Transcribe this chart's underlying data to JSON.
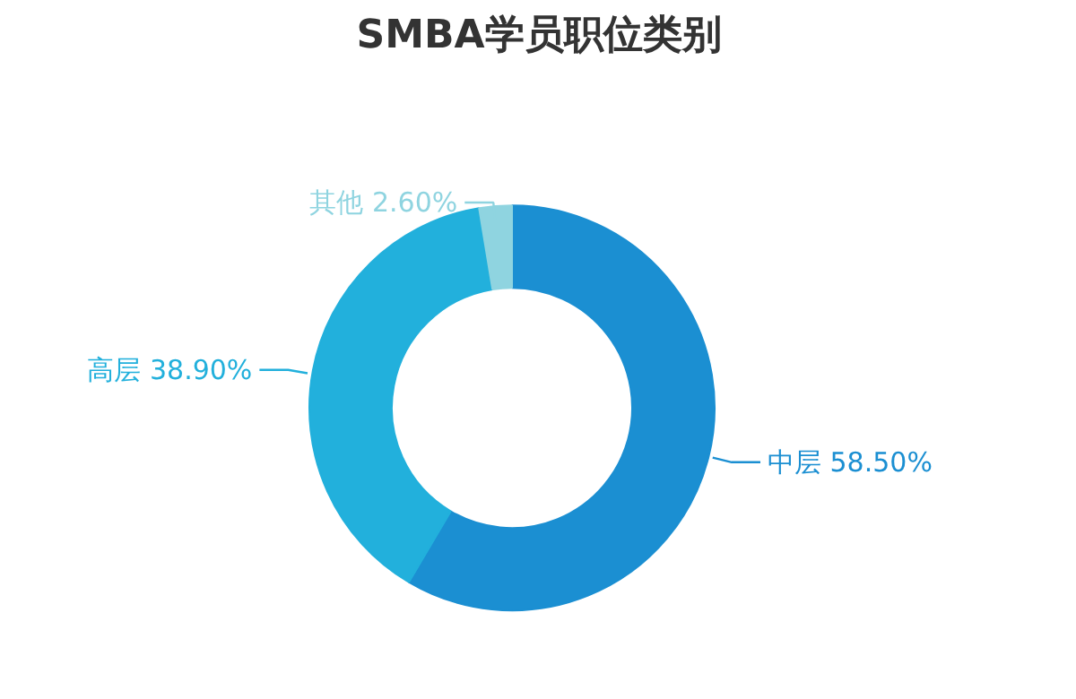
{
  "chart_data": {
    "type": "donut",
    "title": "SMBA学员职位类别",
    "categories": [
      "中层",
      "高层",
      "其他"
    ],
    "values": [
      58.5,
      38.9,
      2.6
    ],
    "value_labels": [
      "58.50%",
      "38.90%",
      "2.60%"
    ],
    "colors": [
      "#1b8fd2",
      "#22b0dc",
      "#8fd4e0"
    ]
  }
}
